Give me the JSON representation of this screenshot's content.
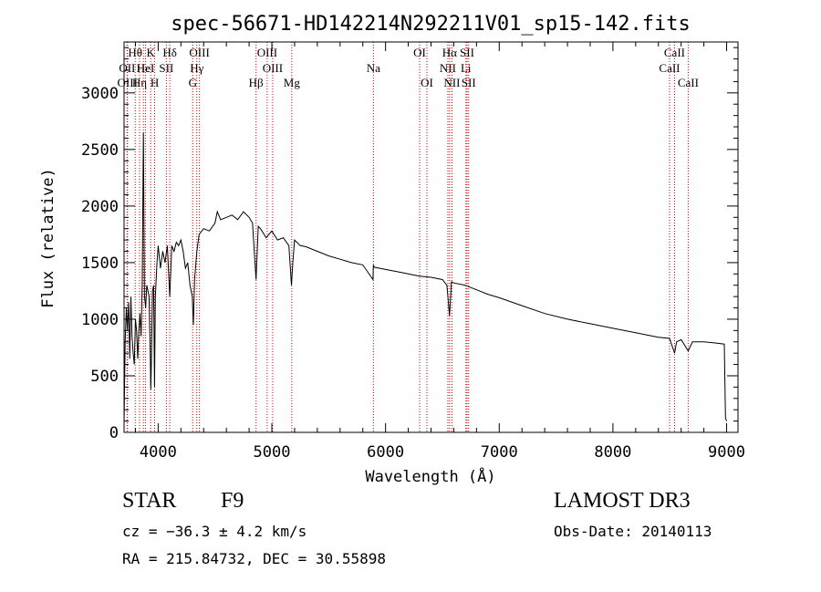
{
  "chart_data": {
    "type": "line",
    "title": "spec-56671-HD142214N292211V01_sp15-142.fits",
    "xlabel": "Wavelength (Å)",
    "ylabel": "Flux (relative)",
    "xlim": [
      3700,
      9100
    ],
    "ylim": [
      0,
      3450
    ],
    "x_ticks": [
      4000,
      5000,
      6000,
      7000,
      8000,
      9000
    ],
    "y_ticks": [
      0,
      500,
      1000,
      1500,
      2000,
      2500,
      3000
    ],
    "x_tick_labels": [
      "4000",
      "5000",
      "6000",
      "7000",
      "8000",
      "9000"
    ],
    "y_tick_labels": [
      "0",
      "500",
      "1000",
      "1500",
      "2000",
      "2500",
      "3000"
    ],
    "series": [
      {
        "name": "flux",
        "x": [
          3700,
          3710,
          3720,
          3730,
          3740,
          3750,
          3760,
          3770,
          3780,
          3790,
          3800,
          3810,
          3820,
          3830,
          3840,
          3850,
          3860,
          3870,
          3880,
          3890,
          3900,
          3910,
          3920,
          3930,
          3935,
          3940,
          3950,
          3960,
          3968,
          3975,
          3990,
          4000,
          4020,
          4040,
          4060,
          4080,
          4102,
          4120,
          4140,
          4160,
          4180,
          4200,
          4220,
          4240,
          4260,
          4280,
          4300,
          4310,
          4320,
          4340,
          4360,
          4400,
          4450,
          4500,
          4520,
          4550,
          4600,
          4650,
          4700,
          4750,
          4800,
          4830,
          4861,
          4880,
          4900,
          4950,
          5000,
          5050,
          5100,
          5150,
          5172,
          5184,
          5200,
          5250,
          5300,
          5350,
          5400,
          5450,
          5500,
          5600,
          5700,
          5800,
          5890,
          5893,
          5900,
          6000,
          6100,
          6200,
          6300,
          6400,
          6500,
          6540,
          6563,
          6580,
          6600,
          6700,
          6800,
          6900,
          7000,
          7200,
          7400,
          7600,
          7800,
          8000,
          8200,
          8400,
          8498,
          8542,
          8560,
          8600,
          8662,
          8700,
          8800,
          8900,
          8980,
          8990,
          9000
        ],
        "y": [
          80,
          800,
          1100,
          900,
          1150,
          650,
          1200,
          850,
          700,
          600,
          1000,
          900,
          650,
          900,
          1050,
          850,
          1300,
          2650,
          1200,
          1100,
          1300,
          1250,
          1200,
          700,
          380,
          600,
          1250,
          1300,
          400,
          1200,
          1500,
          1650,
          1450,
          1600,
          1500,
          1650,
          1200,
          1650,
          1600,
          1680,
          1650,
          1700,
          1600,
          1450,
          1500,
          1300,
          1200,
          950,
          1350,
          1600,
          1750,
          1800,
          1780,
          1850,
          1950,
          1880,
          1900,
          1920,
          1880,
          1950,
          1900,
          1850,
          1350,
          1820,
          1800,
          1720,
          1780,
          1700,
          1720,
          1650,
          1300,
          1500,
          1700,
          1650,
          1640,
          1620,
          1600,
          1580,
          1560,
          1530,
          1500,
          1480,
          1350,
          1480,
          1460,
          1440,
          1420,
          1400,
          1380,
          1370,
          1350,
          1300,
          1030,
          1330,
          1320,
          1300,
          1260,
          1220,
          1190,
          1120,
          1050,
          1000,
          960,
          920,
          880,
          840,
          830,
          700,
          800,
          820,
          720,
          800,
          800,
          790,
          780,
          130,
          100
        ]
      }
    ],
    "lines": [
      {
        "name": "Hθ",
        "wl": 3798,
        "row": 0
      },
      {
        "name": "OII",
        "wl": 3727,
        "row": 1
      },
      {
        "name": "OIII",
        "wl": 3730,
        "row": 2
      },
      {
        "name": "Hη",
        "wl": 3836,
        "row": 2
      },
      {
        "name": "K",
        "wl": 3934,
        "row": 0
      },
      {
        "name": "H",
        "wl": 3969,
        "row": 2
      },
      {
        "name": "Hε",
        "wl": 3870,
        "row": 1
      },
      {
        "name": "HeI",
        "wl": 3889,
        "row": 1
      },
      {
        "name": "SII",
        "wl": 4072,
        "row": 1
      },
      {
        "name": "Hδ",
        "wl": 4102,
        "row": 0
      },
      {
        "name": "OIII",
        "wl": 4363,
        "row": 0
      },
      {
        "name": "Hγ",
        "wl": 4340,
        "row": 1
      },
      {
        "name": "G",
        "wl": 4304,
        "row": 2
      },
      {
        "name": "Hβ",
        "wl": 4861,
        "row": 2
      },
      {
        "name": "OIII",
        "wl": 4959,
        "row": 0
      },
      {
        "name": "OIII",
        "wl": 5007,
        "row": 1
      },
      {
        "name": "Mg",
        "wl": 5175,
        "row": 2
      },
      {
        "name": "Na",
        "wl": 5893,
        "row": 1
      },
      {
        "name": "OI",
        "wl": 6300,
        "row": 0
      },
      {
        "name": "OI",
        "wl": 6364,
        "row": 2
      },
      {
        "name": "Hα",
        "wl": 6563,
        "row": 0
      },
      {
        "name": "NII",
        "wl": 6548,
        "row": 1
      },
      {
        "name": "NII",
        "wl": 6584,
        "row": 2
      },
      {
        "name": "SII",
        "wl": 6717,
        "row": 0
      },
      {
        "name": "SII",
        "wl": 6731,
        "row": 2
      },
      {
        "name": "Li",
        "wl": 6707,
        "row": 1
      },
      {
        "name": "CaII",
        "wl": 8498,
        "row": 1
      },
      {
        "name": "CaII",
        "wl": 8542,
        "row": 0
      },
      {
        "name": "CaII",
        "wl": 8662,
        "row": 2
      }
    ]
  },
  "info": {
    "class": "STAR",
    "subclass": "F9",
    "survey": "LAMOST DR3",
    "cz": "cz = −36.3 ± 4.2 km/s",
    "obsdate": "Obs-Date: 20140113",
    "radec": "RA = 215.84732, DEC =  30.55898"
  },
  "colors": {
    "line": "#cc0000",
    "spectrum": "#000000"
  }
}
